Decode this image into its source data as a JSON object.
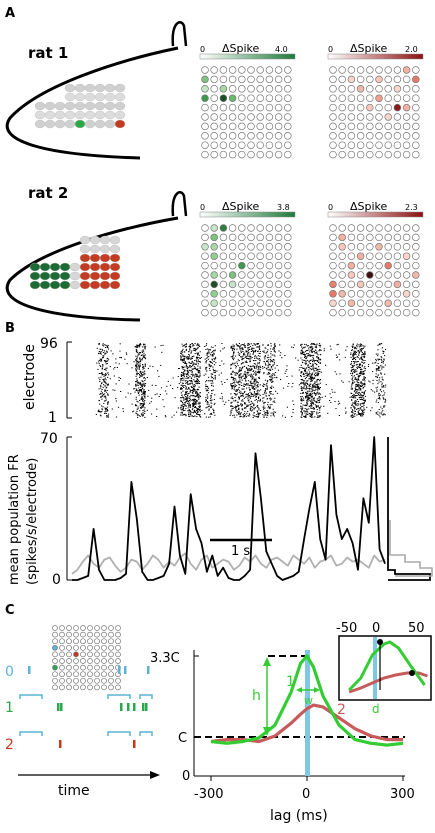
{
  "panels": {
    "a": {
      "letter": "A"
    },
    "b": {
      "letter": "B"
    },
    "c": {
      "letter": "C"
    }
  },
  "rats": [
    {
      "label": "rat 1",
      "green_max": "4.0",
      "red_max": "2.0"
    },
    {
      "label": "rat 2",
      "green_max": "3.8",
      "red_max": "2.3"
    }
  ],
  "colorbar": {
    "title": "ΔSpike",
    "zero": "0"
  },
  "raster": {
    "ylabel": "electrode",
    "ytick_top": "96",
    "ytick_bottom": "1"
  },
  "rate": {
    "ylabel_1": "mean population FR",
    "ylabel_2": "(spikes/s/electrode)",
    "ytick_top": "70",
    "ytick_bottom": "0",
    "scalebar_label": "1 s"
  },
  "panel_c": {
    "row_labels": [
      "0",
      "1",
      "2"
    ],
    "time_label": "time",
    "y_top": "3.3C",
    "y_c": "C",
    "y_zero": "0",
    "x_ticks": [
      "-300",
      "0",
      "300"
    ],
    "x_label": "lag (ms)",
    "curve_labels": [
      "1",
      "2"
    ],
    "h_label": "h",
    "w_label": "w",
    "inset_ticks": [
      "-50",
      "0",
      "50"
    ],
    "inset_d": "d"
  },
  "colors": {
    "green": "#2aa84a",
    "dark_green": "#1e6a35",
    "red": "#c23b22",
    "cyan": "#5ab4d6",
    "gray": "#b0b0b0",
    "curve_red": "#c75a5a",
    "curve_green": "#33cc33"
  },
  "chart_data": [
    {
      "type": "line",
      "title": "",
      "xlabel": "",
      "ylabel": "mean population FR (spikes/s/electrode)",
      "ylim": [
        0,
        70
      ],
      "series": [
        {
          "values": [
            0,
            0,
            1,
            2,
            25,
            5,
            0,
            0,
            0,
            1,
            3,
            48,
            30,
            4,
            0,
            0,
            1,
            2,
            8,
            36,
            12,
            3,
            42,
            25,
            18,
            4,
            12,
            2,
            6,
            1,
            0,
            0,
            2,
            5,
            62,
            40,
            14,
            8,
            2,
            0,
            1,
            2,
            4,
            20,
            35,
            48,
            20,
            10,
            66,
            32,
            20,
            25,
            18,
            5,
            40,
            28,
            70,
            15,
            8
          ]
        },
        {
          "values": [
            3,
            5,
            9,
            12,
            8,
            6,
            10,
            11,
            7,
            4,
            6,
            10,
            9,
            5,
            8,
            12,
            10,
            6,
            9,
            7,
            11,
            13,
            8,
            5,
            10,
            12,
            6,
            8,
            10,
            9,
            5,
            7,
            11,
            9,
            12,
            8,
            6,
            10,
            11,
            9,
            7,
            12,
            10,
            8,
            11,
            6,
            9,
            10,
            12,
            7,
            8,
            11,
            9,
            10,
            8,
            6,
            12,
            9,
            10
          ]
        }
      ]
    },
    {
      "type": "line",
      "title": "",
      "xlabel": "lag (ms)",
      "ylabel": "",
      "x": [
        -300,
        -250,
        -200,
        -150,
        -100,
        -50,
        -20,
        0,
        20,
        50,
        100,
        150,
        200,
        250,
        300
      ],
      "series": [
        {
          "name": "1",
          "values": [
            0.95,
            0.9,
            0.95,
            1.05,
            1.4,
            2.3,
            3.1,
            3.3,
            3.0,
            2.2,
            1.4,
            1.0,
            0.9,
            0.85,
            0.9
          ]
        },
        {
          "name": "2",
          "values": [
            0.95,
            1.0,
            1.0,
            0.95,
            1.1,
            1.45,
            1.7,
            1.85,
            1.95,
            1.9,
            1.6,
            1.3,
            1.1,
            1.0,
            1.0
          ]
        }
      ]
    }
  ]
}
